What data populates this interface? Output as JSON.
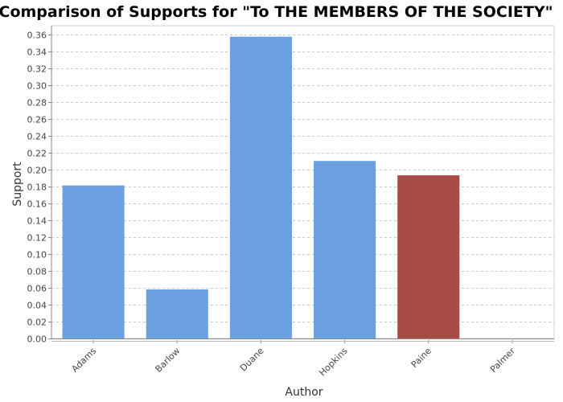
{
  "chart_data": {
    "type": "bar",
    "title": "Comparison of Supports for \"To THE MEMBERS OF THE SOCIETY\"",
    "xlabel": "Author",
    "ylabel": "Support",
    "categories": [
      "Adams",
      "Barlow",
      "Duane",
      "Hopkins",
      "Paine",
      "Palmer"
    ],
    "values": [
      0.181,
      0.058,
      0.357,
      0.21,
      0.193,
      0.0
    ],
    "highlight_category": "Paine",
    "colors": {
      "bar": "#6aa0e0",
      "highlight": "#a84b45",
      "grid": "#c8c8c8",
      "axis": "#888888"
    },
    "ylim": [
      0,
      0.37
    ],
    "yticks": [
      "0.00",
      "0.02",
      "0.04",
      "0.06",
      "0.08",
      "0.10",
      "0.12",
      "0.14",
      "0.16",
      "0.18",
      "0.20",
      "0.22",
      "0.24",
      "0.26",
      "0.28",
      "0.30",
      "0.32",
      "0.34",
      "0.36"
    ],
    "grid": true,
    "legend": "none"
  }
}
